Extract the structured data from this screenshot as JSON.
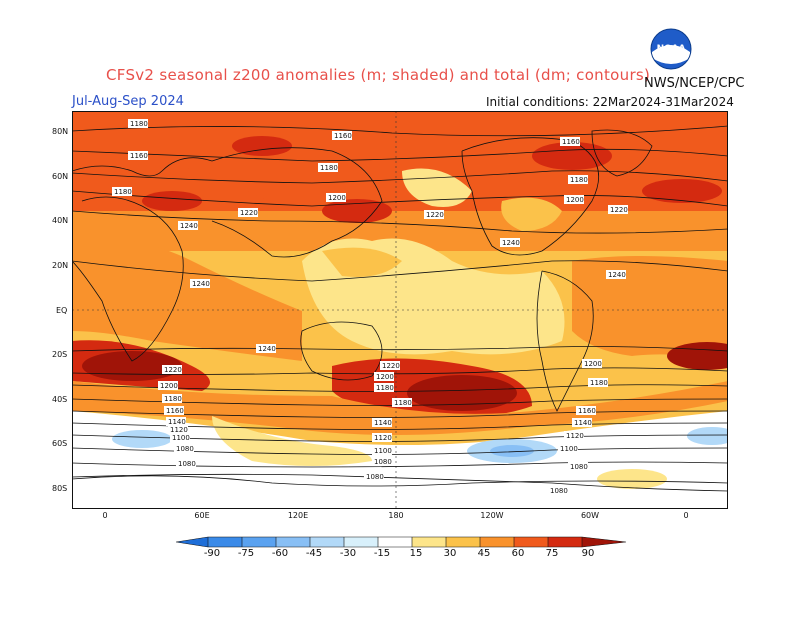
{
  "header": {
    "title": "CFSv2 seasonal z200 anomalies (m; shaded) and total (dm; contours)",
    "season": "Jul-Aug-Sep 2024",
    "initial_conditions": "Initial conditions: 22Mar2024-31Mar2024",
    "agency": "NWS/NCEP/CPC",
    "logo_text": "NOAA"
  },
  "axes": {
    "lat_labels": [
      "80N",
      "60N",
      "40N",
      "20N",
      "EQ",
      "20S",
      "40S",
      "60S",
      "80S"
    ],
    "lon_labels": [
      "0",
      "60E",
      "120E",
      "180",
      "120W",
      "60W",
      "0"
    ]
  },
  "contour_labels": [
    "1180",
    "1160",
    "1160",
    "1180",
    "1160",
    "1180",
    "1180",
    "1200",
    "1200",
    "1220",
    "1220",
    "1220",
    "1200",
    "1240",
    "1240",
    "1240",
    "1240",
    "1240",
    "1220",
    "1220",
    "1200",
    "1200",
    "1200",
    "1180",
    "1180",
    "1180",
    "1180",
    "1160",
    "1160",
    "1140",
    "1140",
    "1140",
    "1120",
    "1120",
    "1120",
    "1100",
    "1100",
    "1100",
    "1080",
    "1080",
    "1080",
    "1080",
    "1080",
    "1080"
  ],
  "colorbar": {
    "labels": [
      "-90",
      "-75",
      "-60",
      "-45",
      "-30",
      "-15",
      "15",
      "30",
      "45",
      "60",
      "75",
      "90"
    ],
    "colors": [
      "#1e6ed8",
      "#3a8ae8",
      "#5aa2f0",
      "#88bff5",
      "#b2d9f8",
      "#d8f0fb",
      "#ffffff",
      "#fde58a",
      "#fbc24a",
      "#f9922c",
      "#f05a1c",
      "#d42a10",
      "#a01408"
    ]
  },
  "colors": {
    "title": "#e8504a",
    "season": "#2b50c8",
    "ocean_background": "#fbc24a"
  }
}
